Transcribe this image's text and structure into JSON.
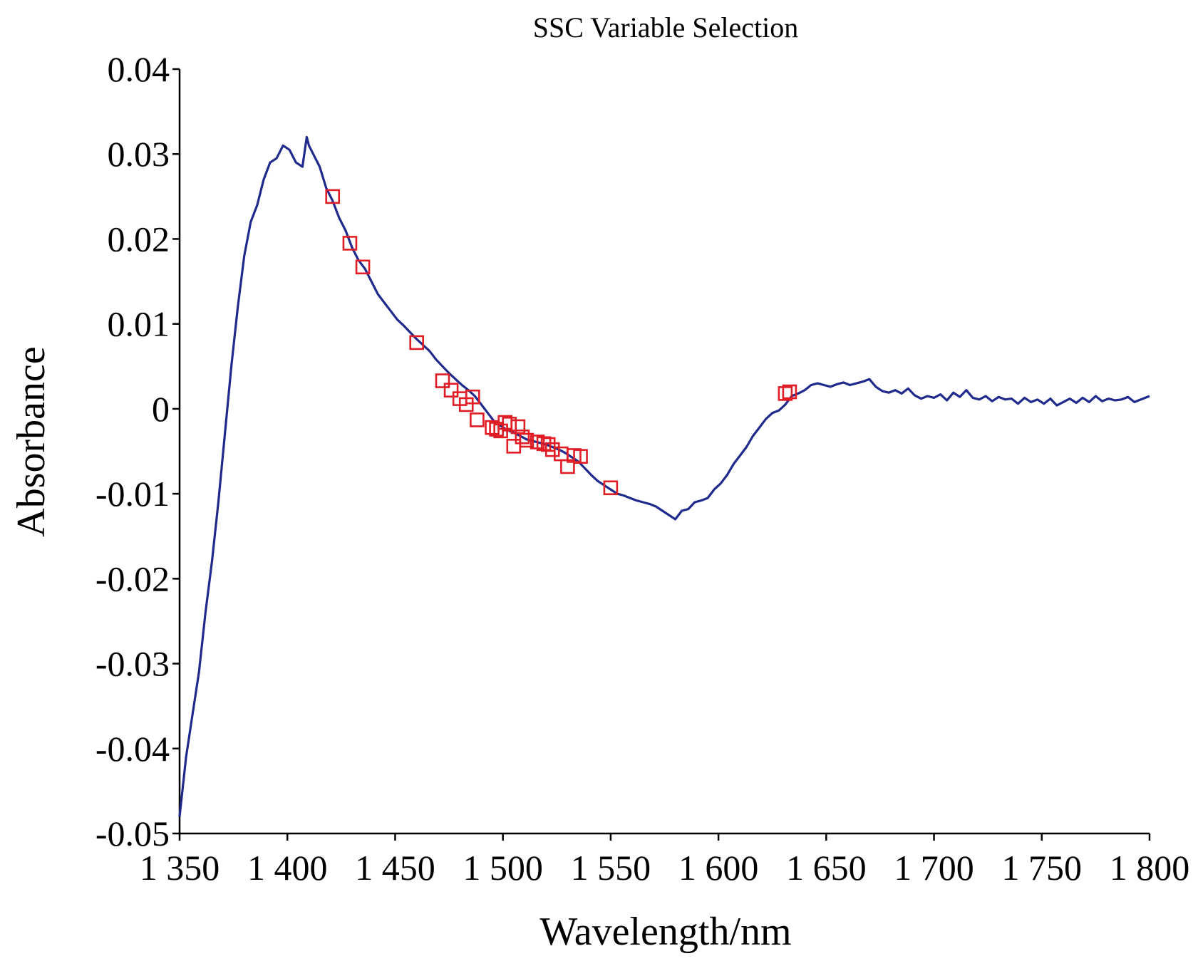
{
  "chart_data": {
    "type": "line",
    "title": "SSC Variable Selection",
    "xlabel": "Wavelength/nm",
    "ylabel": "Absorbance",
    "xlim": [
      1350,
      1800
    ],
    "ylim": [
      -0.05,
      0.04
    ],
    "x_ticks": [
      1350,
      1400,
      1450,
      1500,
      1550,
      1600,
      1650,
      1700,
      1750,
      1800
    ],
    "x_tick_labels": [
      "1 350",
      "1 400",
      "1 450",
      "1 500",
      "1 550",
      "1 600",
      "1 650",
      "1 700",
      "1 750",
      "1 800"
    ],
    "y_ticks": [
      -0.05,
      -0.04,
      -0.03,
      -0.02,
      -0.01,
      0,
      0.01,
      0.02,
      0.03,
      0.04
    ],
    "y_tick_labels": [
      "-0.05",
      "-0.04",
      "-0.03",
      "-0.02",
      "-0.01",
      "0",
      "0.01",
      "0.02",
      "0.03",
      "0.04"
    ],
    "grid": false,
    "series": [
      {
        "name": "spectrum",
        "color": "#1f2a8c",
        "x": [
          1350,
          1353,
          1356,
          1359,
          1362,
          1365,
          1368,
          1371,
          1374,
          1377,
          1380,
          1383,
          1386,
          1389,
          1392,
          1395,
          1398,
          1401,
          1404,
          1407,
          1409,
          1410,
          1412,
          1415,
          1418,
          1421,
          1424,
          1427,
          1430,
          1433,
          1436,
          1439,
          1442,
          1445,
          1448,
          1451,
          1454,
          1457,
          1460,
          1463,
          1466,
          1469,
          1472,
          1475,
          1478,
          1481,
          1484,
          1487,
          1490,
          1493,
          1496,
          1499,
          1502,
          1505,
          1508,
          1511,
          1514,
          1517,
          1520,
          1523,
          1526,
          1529,
          1532,
          1535,
          1538,
          1541,
          1544,
          1547,
          1550,
          1553,
          1556,
          1559,
          1562,
          1565,
          1568,
          1571,
          1574,
          1577,
          1580,
          1583,
          1586,
          1589,
          1592,
          1595,
          1598,
          1601,
          1604,
          1607,
          1610,
          1613,
          1616,
          1619,
          1622,
          1625,
          1628,
          1631,
          1634,
          1637,
          1640,
          1643,
          1646,
          1649,
          1652,
          1655,
          1658,
          1661,
          1664,
          1667,
          1670,
          1673,
          1676,
          1679,
          1682,
          1685,
          1688,
          1691,
          1694,
          1697,
          1700,
          1703,
          1706,
          1709,
          1712,
          1715,
          1718,
          1721,
          1724,
          1727,
          1730,
          1733,
          1736,
          1739,
          1742,
          1745,
          1748,
          1751,
          1754,
          1757,
          1760,
          1763,
          1766,
          1769,
          1772,
          1775,
          1778,
          1781,
          1784,
          1787,
          1790,
          1793,
          1796,
          1800
        ],
        "values": [
          -0.048,
          -0.041,
          -0.036,
          -0.031,
          -0.024,
          -0.018,
          -0.011,
          -0.003,
          0.005,
          0.012,
          0.018,
          0.022,
          0.024,
          0.027,
          0.029,
          0.0295,
          0.031,
          0.0305,
          0.029,
          0.0285,
          0.032,
          0.031,
          0.03,
          0.0285,
          0.026,
          0.0245,
          0.0225,
          0.021,
          0.019,
          0.0175,
          0.0165,
          0.015,
          0.0135,
          0.0125,
          0.0115,
          0.0105,
          0.0098,
          0.009,
          0.0082,
          0.0075,
          0.0068,
          0.0058,
          0.005,
          0.0042,
          0.0035,
          0.0028,
          0.0022,
          0.0015,
          0.0005,
          -0.0005,
          -0.0015,
          -0.002,
          -0.0025,
          -0.0028,
          -0.0032,
          -0.0036,
          -0.0038,
          -0.004,
          -0.0042,
          -0.0045,
          -0.0048,
          -0.0052,
          -0.0057,
          -0.0062,
          -0.007,
          -0.0078,
          -0.0085,
          -0.009,
          -0.0095,
          -0.01,
          -0.0102,
          -0.0105,
          -0.0108,
          -0.011,
          -0.0112,
          -0.0115,
          -0.012,
          -0.0125,
          -0.013,
          -0.012,
          -0.0118,
          -0.011,
          -0.0108,
          -0.0105,
          -0.0095,
          -0.0088,
          -0.0078,
          -0.0065,
          -0.0055,
          -0.0045,
          -0.0032,
          -0.0022,
          -0.0012,
          -0.0005,
          -0.0002,
          0.0005,
          0.0015,
          0.0018,
          0.0022,
          0.0028,
          0.003,
          0.0028,
          0.0026,
          0.0029,
          0.0031,
          0.0028,
          0.003,
          0.0032,
          0.0035,
          0.0026,
          0.0021,
          0.0019,
          0.0022,
          0.0018,
          0.0024,
          0.0016,
          0.0012,
          0.0015,
          0.0013,
          0.0017,
          0.001,
          0.0019,
          0.0014,
          0.0022,
          0.0013,
          0.0011,
          0.0015,
          0.0009,
          0.0014,
          0.0011,
          0.0012,
          0.0006,
          0.0013,
          0.0008,
          0.0011,
          0.0006,
          0.0012,
          0.0004,
          0.0008,
          0.0012,
          0.0007,
          0.0013,
          0.0008,
          0.0015,
          0.0009,
          0.0012,
          0.001,
          0.0011,
          0.0014,
          0.0008,
          0.0011,
          0.0015
        ]
      },
      {
        "name": "selected variables",
        "color": "#e01c24",
        "marker": "square",
        "x": [
          1421,
          1429,
          1435,
          1460,
          1472,
          1476,
          1480,
          1483,
          1486,
          1488,
          1495,
          1497,
          1499,
          1501,
          1503,
          1505,
          1507,
          1509,
          1511,
          1516,
          1519,
          1521,
          1523,
          1527,
          1530,
          1533,
          1536,
          1550,
          1631,
          1633
        ],
        "values": [
          0.025,
          0.0195,
          0.0167,
          0.0078,
          0.0033,
          0.0022,
          0.0012,
          0.0005,
          0.0014,
          -0.0013,
          -0.0022,
          -0.0024,
          -0.0026,
          -0.0016,
          -0.0018,
          -0.0044,
          -0.0021,
          -0.0033,
          -0.0037,
          -0.0039,
          -0.0041,
          -0.0042,
          -0.0048,
          -0.0053,
          -0.0068,
          -0.0055,
          -0.0056,
          -0.0093,
          0.0018,
          0.002
        ]
      }
    ]
  }
}
